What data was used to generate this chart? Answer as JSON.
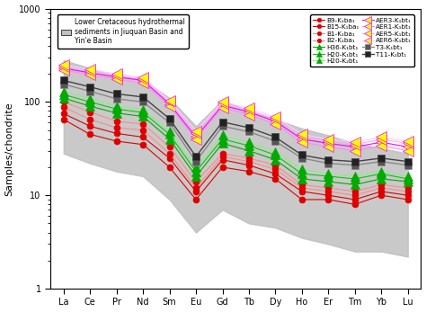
{
  "elements": [
    "La",
    "Ce",
    "Pr",
    "Nd",
    "Sm",
    "Eu",
    "Gd",
    "Tb",
    "Dy",
    "Ho",
    "Er",
    "Tm",
    "Yb",
    "Lu"
  ],
  "background_upper": [
    280,
    230,
    190,
    175,
    110,
    55,
    105,
    80,
    65,
    52,
    44,
    36,
    32,
    28
  ],
  "background_lower": [
    28,
    22,
    18,
    16,
    9,
    4,
    7,
    5,
    4.5,
    3.5,
    3.0,
    2.5,
    2.5,
    2.2
  ],
  "series": [
    {
      "label": "B9-K₁ba₁",
      "color": "#dd0000",
      "linecolor": "#dd0000",
      "marker": "o",
      "markersize": 5,
      "linestyle": "-",
      "linewidth": 0.8,
      "values": [
        65,
        45,
        38,
        35,
        20,
        9,
        20,
        18,
        15,
        9,
        9,
        8,
        10,
        9
      ]
    },
    {
      "label": "B15-K₁ba₁",
      "color": "#dd0000",
      "linecolor": "#dd0000",
      "marker": "o",
      "markersize": 5,
      "linestyle": "-",
      "linewidth": 0.8,
      "values": [
        75,
        55,
        46,
        42,
        25,
        11,
        24,
        21,
        17,
        11,
        10,
        9,
        11,
        10
      ]
    },
    {
      "label": "B1-K₁ba₁",
      "color": "#dd0000",
      "linecolor": "#ff8888",
      "marker": "o",
      "markersize": 5,
      "linestyle": "-",
      "linewidth": 0.8,
      "values": [
        88,
        65,
        53,
        50,
        28,
        12,
        26,
        23,
        19,
        12,
        11,
        10,
        12,
        11
      ]
    },
    {
      "label": "B2-K₁ba₁",
      "color": "#dd0000",
      "linecolor": "#ff8888",
      "marker": "o",
      "markersize": 5,
      "linestyle": "-",
      "linewidth": 0.8,
      "values": [
        100,
        78,
        62,
        58,
        33,
        14,
        28,
        25,
        21,
        13,
        12,
        11,
        13,
        12
      ]
    },
    {
      "label": "H36-K₁bt₁",
      "color": "#00aa00",
      "linecolor": "#00aa00",
      "marker": "^",
      "markersize": 7,
      "linestyle": "-",
      "linewidth": 0.8,
      "values": [
        110,
        90,
        76,
        70,
        40,
        16,
        36,
        30,
        24,
        15,
        14,
        13,
        15,
        14
      ]
    },
    {
      "label": "H20-K₁bt₁",
      "color": "#00aa00",
      "linecolor": "#00cc00",
      "marker": "^",
      "markersize": 7,
      "linestyle": "-",
      "linewidth": 0.8,
      "values": [
        120,
        100,
        84,
        77,
        45,
        18,
        40,
        34,
        27,
        17,
        16,
        15,
        17,
        15
      ]
    },
    {
      "label": "H20-K₂bt₁",
      "color": "#00aa00",
      "linecolor": "#88ee88",
      "marker": "^",
      "markersize": 7,
      "linestyle": "-",
      "linewidth": 0.8,
      "values": [
        130,
        108,
        90,
        83,
        48,
        20,
        44,
        37,
        29,
        19,
        17,
        16,
        18,
        16
      ]
    },
    {
      "label": "AER3-K₁bt₁",
      "color": "#ff00ff",
      "linecolor": "#ff00ff",
      "marker": "<",
      "markersize": 9,
      "markerfacecolor": "#ffff00",
      "linestyle": "-",
      "linewidth": 0.8,
      "values": [
        230,
        205,
        185,
        170,
        95,
        42,
        92,
        78,
        62,
        40,
        36,
        33,
        37,
        33
      ]
    },
    {
      "label": "AER1-K₁bt₁",
      "color": "#ff00ff",
      "linecolor": "#ff88ff",
      "marker": "<",
      "markersize": 9,
      "markerfacecolor": "#ffff00",
      "linestyle": "-",
      "linewidth": 0.8,
      "values": [
        220,
        195,
        175,
        160,
        90,
        40,
        87,
        73,
        58,
        37,
        33,
        30,
        34,
        30
      ]
    },
    {
      "label": "AER5-K₁bt₁",
      "color": "#ff00ff",
      "linecolor": "#ffaaff",
      "marker": "<",
      "markersize": 9,
      "markerfacecolor": "#ffff00",
      "linestyle": "-",
      "linewidth": 0.8,
      "values": [
        240,
        215,
        193,
        177,
        100,
        46,
        96,
        82,
        66,
        43,
        38,
        35,
        40,
        36
      ]
    },
    {
      "label": "AER6-K₁bt₁",
      "color": "#ff00ff",
      "linecolor": "#ffccff",
      "marker": "<",
      "markersize": 9,
      "markerfacecolor": "#ffff00",
      "linestyle": "-",
      "linewidth": 0.8,
      "values": [
        250,
        222,
        200,
        183,
        104,
        49,
        100,
        86,
        69,
        45,
        40,
        37,
        42,
        38
      ]
    },
    {
      "label": "T3-K₁bt₁",
      "color": "#888888",
      "linecolor": "#888888",
      "marker": "s",
      "markersize": 6,
      "markerfacecolor": "#555555",
      "linestyle": "-",
      "linewidth": 1.0,
      "values": [
        155,
        130,
        108,
        100,
        60,
        23,
        55,
        48,
        38,
        25,
        22,
        21,
        23,
        21
      ]
    },
    {
      "label": "T11-K₁bt₁",
      "color": "#444444",
      "linecolor": "#444444",
      "marker": "s",
      "markersize": 6,
      "markerfacecolor": "#222222",
      "linestyle": "-",
      "linewidth": 1.0,
      "values": [
        170,
        145,
        122,
        113,
        66,
        26,
        61,
        53,
        42,
        27,
        24,
        23,
        25,
        23
      ]
    }
  ],
  "ylabel": "Samples/chondrite",
  "ylim": [
    1,
    1000
  ],
  "background_color": "#ffffff",
  "legend_text": "Lower Cretaceous hydrothermal\nsediments in Jiuquan Basin and\nYin'e Basin"
}
